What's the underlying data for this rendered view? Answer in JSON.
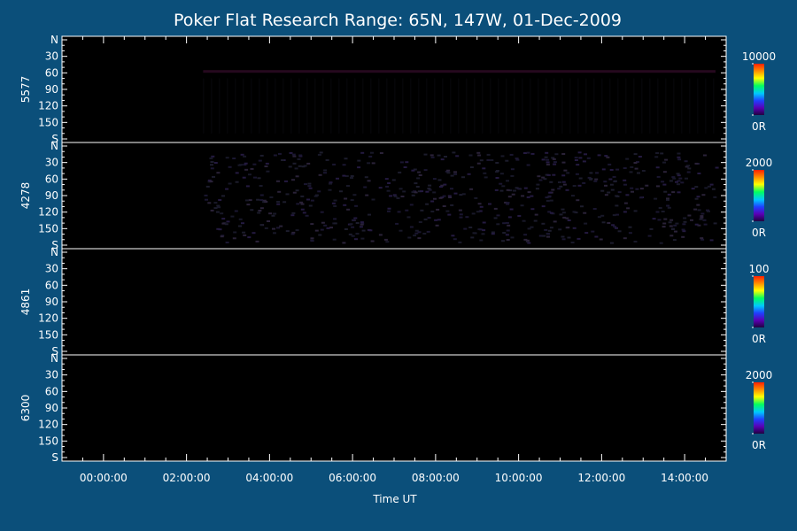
{
  "chart_data": {
    "type": "heatmap",
    "title": "Poker Flat Research Range: 65N, 147W, 01-Dec-2009",
    "xlabel": "Time UT",
    "x_ticks": [
      "00:00:00",
      "02:00:00",
      "04:00:00",
      "06:00:00",
      "08:00:00",
      "10:00:00",
      "12:00:00",
      "14:00:00"
    ],
    "x_range_hours": [
      -1.0,
      15.0
    ],
    "data_start_hour": 2.4,
    "y_ticks": [
      "N",
      "30",
      "60",
      "90",
      "120",
      "150",
      "S"
    ],
    "y_range_deg": [
      0,
      180
    ],
    "panels": [
      {
        "wavelength": "5577",
        "colorbar_max": "10000",
        "colorbar_min": "0R",
        "activity": "faint band near 60"
      },
      {
        "wavelength": "4278",
        "colorbar_max": "2000",
        "colorbar_min": "0R",
        "activity": "faint noise across scan"
      },
      {
        "wavelength": "4861",
        "colorbar_max": "100",
        "colorbar_min": "0R",
        "activity": "none"
      },
      {
        "wavelength": "6300",
        "colorbar_max": "2000",
        "colorbar_min": "0R",
        "activity": "none"
      }
    ],
    "colorbar_colors": [
      "#ff2000",
      "#ff8c00",
      "#ffff00",
      "#00ff60",
      "#00c8ff",
      "#2040ff",
      "#5a00b4",
      "#200040"
    ],
    "grid": false
  }
}
